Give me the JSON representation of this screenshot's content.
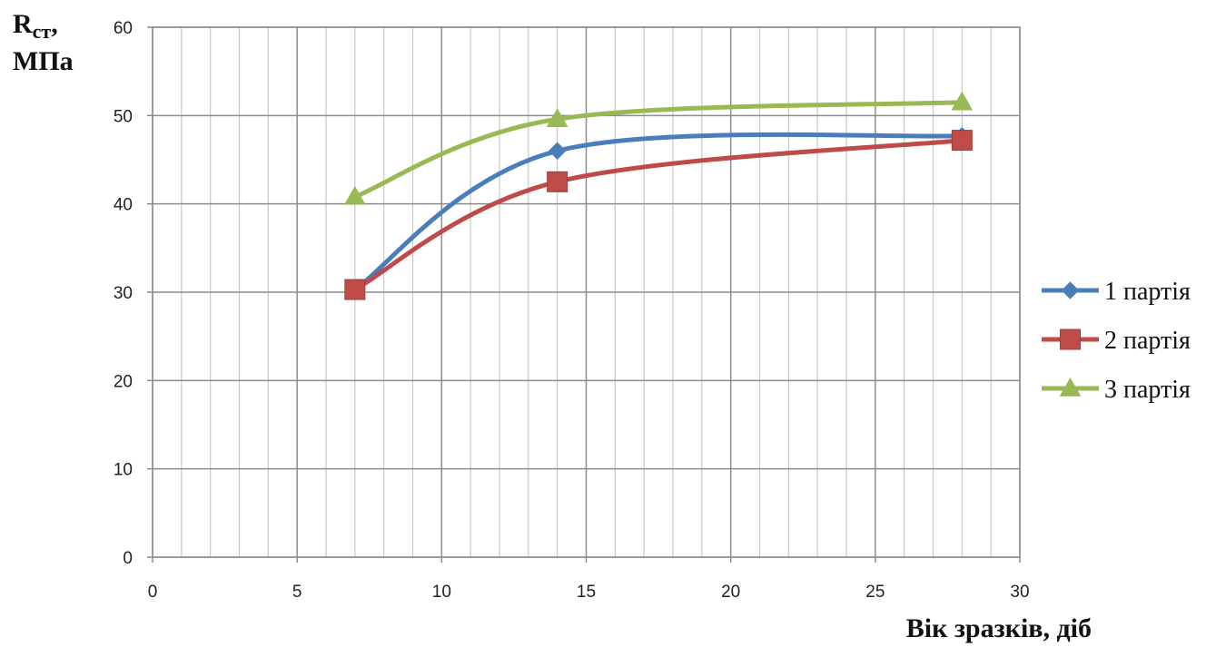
{
  "chart_data": {
    "type": "line",
    "title": "",
    "ylabel": "Rст, МПа",
    "ylabel_main": "R",
    "ylabel_sub": "ст",
    "ylabel_line1_suffix": ",",
    "ylabel_line2": "МПа",
    "xlabel": "Вік зразків, діб",
    "xlim": [
      0,
      30
    ],
    "ylim": [
      0,
      60
    ],
    "x_ticks": [
      0,
      5,
      10,
      15,
      20,
      25,
      30
    ],
    "y_ticks": [
      0,
      10,
      20,
      30,
      40,
      50,
      60
    ],
    "x_tick_labels": [
      "0",
      "5",
      "10",
      "15",
      "20",
      "25",
      "30"
    ],
    "y_tick_labels": [
      "0",
      "10",
      "20",
      "30",
      "40",
      "50",
      "60"
    ],
    "grid": true,
    "smooth": true,
    "legend_position": "right",
    "series": [
      {
        "name": "1 партія",
        "x": [
          7,
          14,
          28
        ],
        "values": [
          30.3,
          46.0,
          47.7
        ],
        "color": "#4a7ebb",
        "marker": "diamond"
      },
      {
        "name": "2 партія",
        "x": [
          7,
          14,
          28
        ],
        "values": [
          30.3,
          42.5,
          47.2
        ],
        "color": "#be4b48",
        "marker": "square"
      },
      {
        "name": "3 партія",
        "x": [
          7,
          14,
          28
        ],
        "values": [
          40.8,
          49.6,
          51.5
        ],
        "color": "#98b954",
        "marker": "triangle"
      }
    ]
  }
}
